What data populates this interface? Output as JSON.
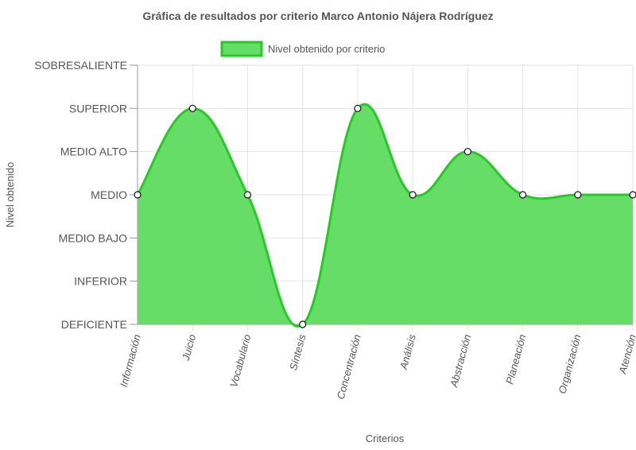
{
  "chart_data": {
    "type": "area",
    "title": "Gráfica de resultados por criterio Marco Antonio Nájera Rodríguez",
    "xlabel": "Criterios",
    "ylabel": "Nivel obtenido",
    "legend_position": "top-center",
    "grid": true,
    "y_levels": [
      "DEFICIENTE",
      "INFERIOR",
      "MEDIO BAJO",
      "MEDIO",
      "MEDIO ALTO",
      "SUPERIOR",
      "SOBRESALIENTE"
    ],
    "ylim": [
      0,
      6
    ],
    "categories": [
      "Información",
      "Juicio",
      "Vocabulario",
      "Síntesis",
      "Concentración",
      "Análisis",
      "Abstracción",
      "Planeación",
      "Organización",
      "Atención"
    ],
    "series": [
      {
        "name": "Nivel obtenido por criterio",
        "values": [
          3,
          5,
          3,
          0,
          5,
          3,
          4,
          3,
          3,
          3
        ],
        "fill_color": "#66dd66",
        "line_color": "#22cc22"
      }
    ]
  }
}
